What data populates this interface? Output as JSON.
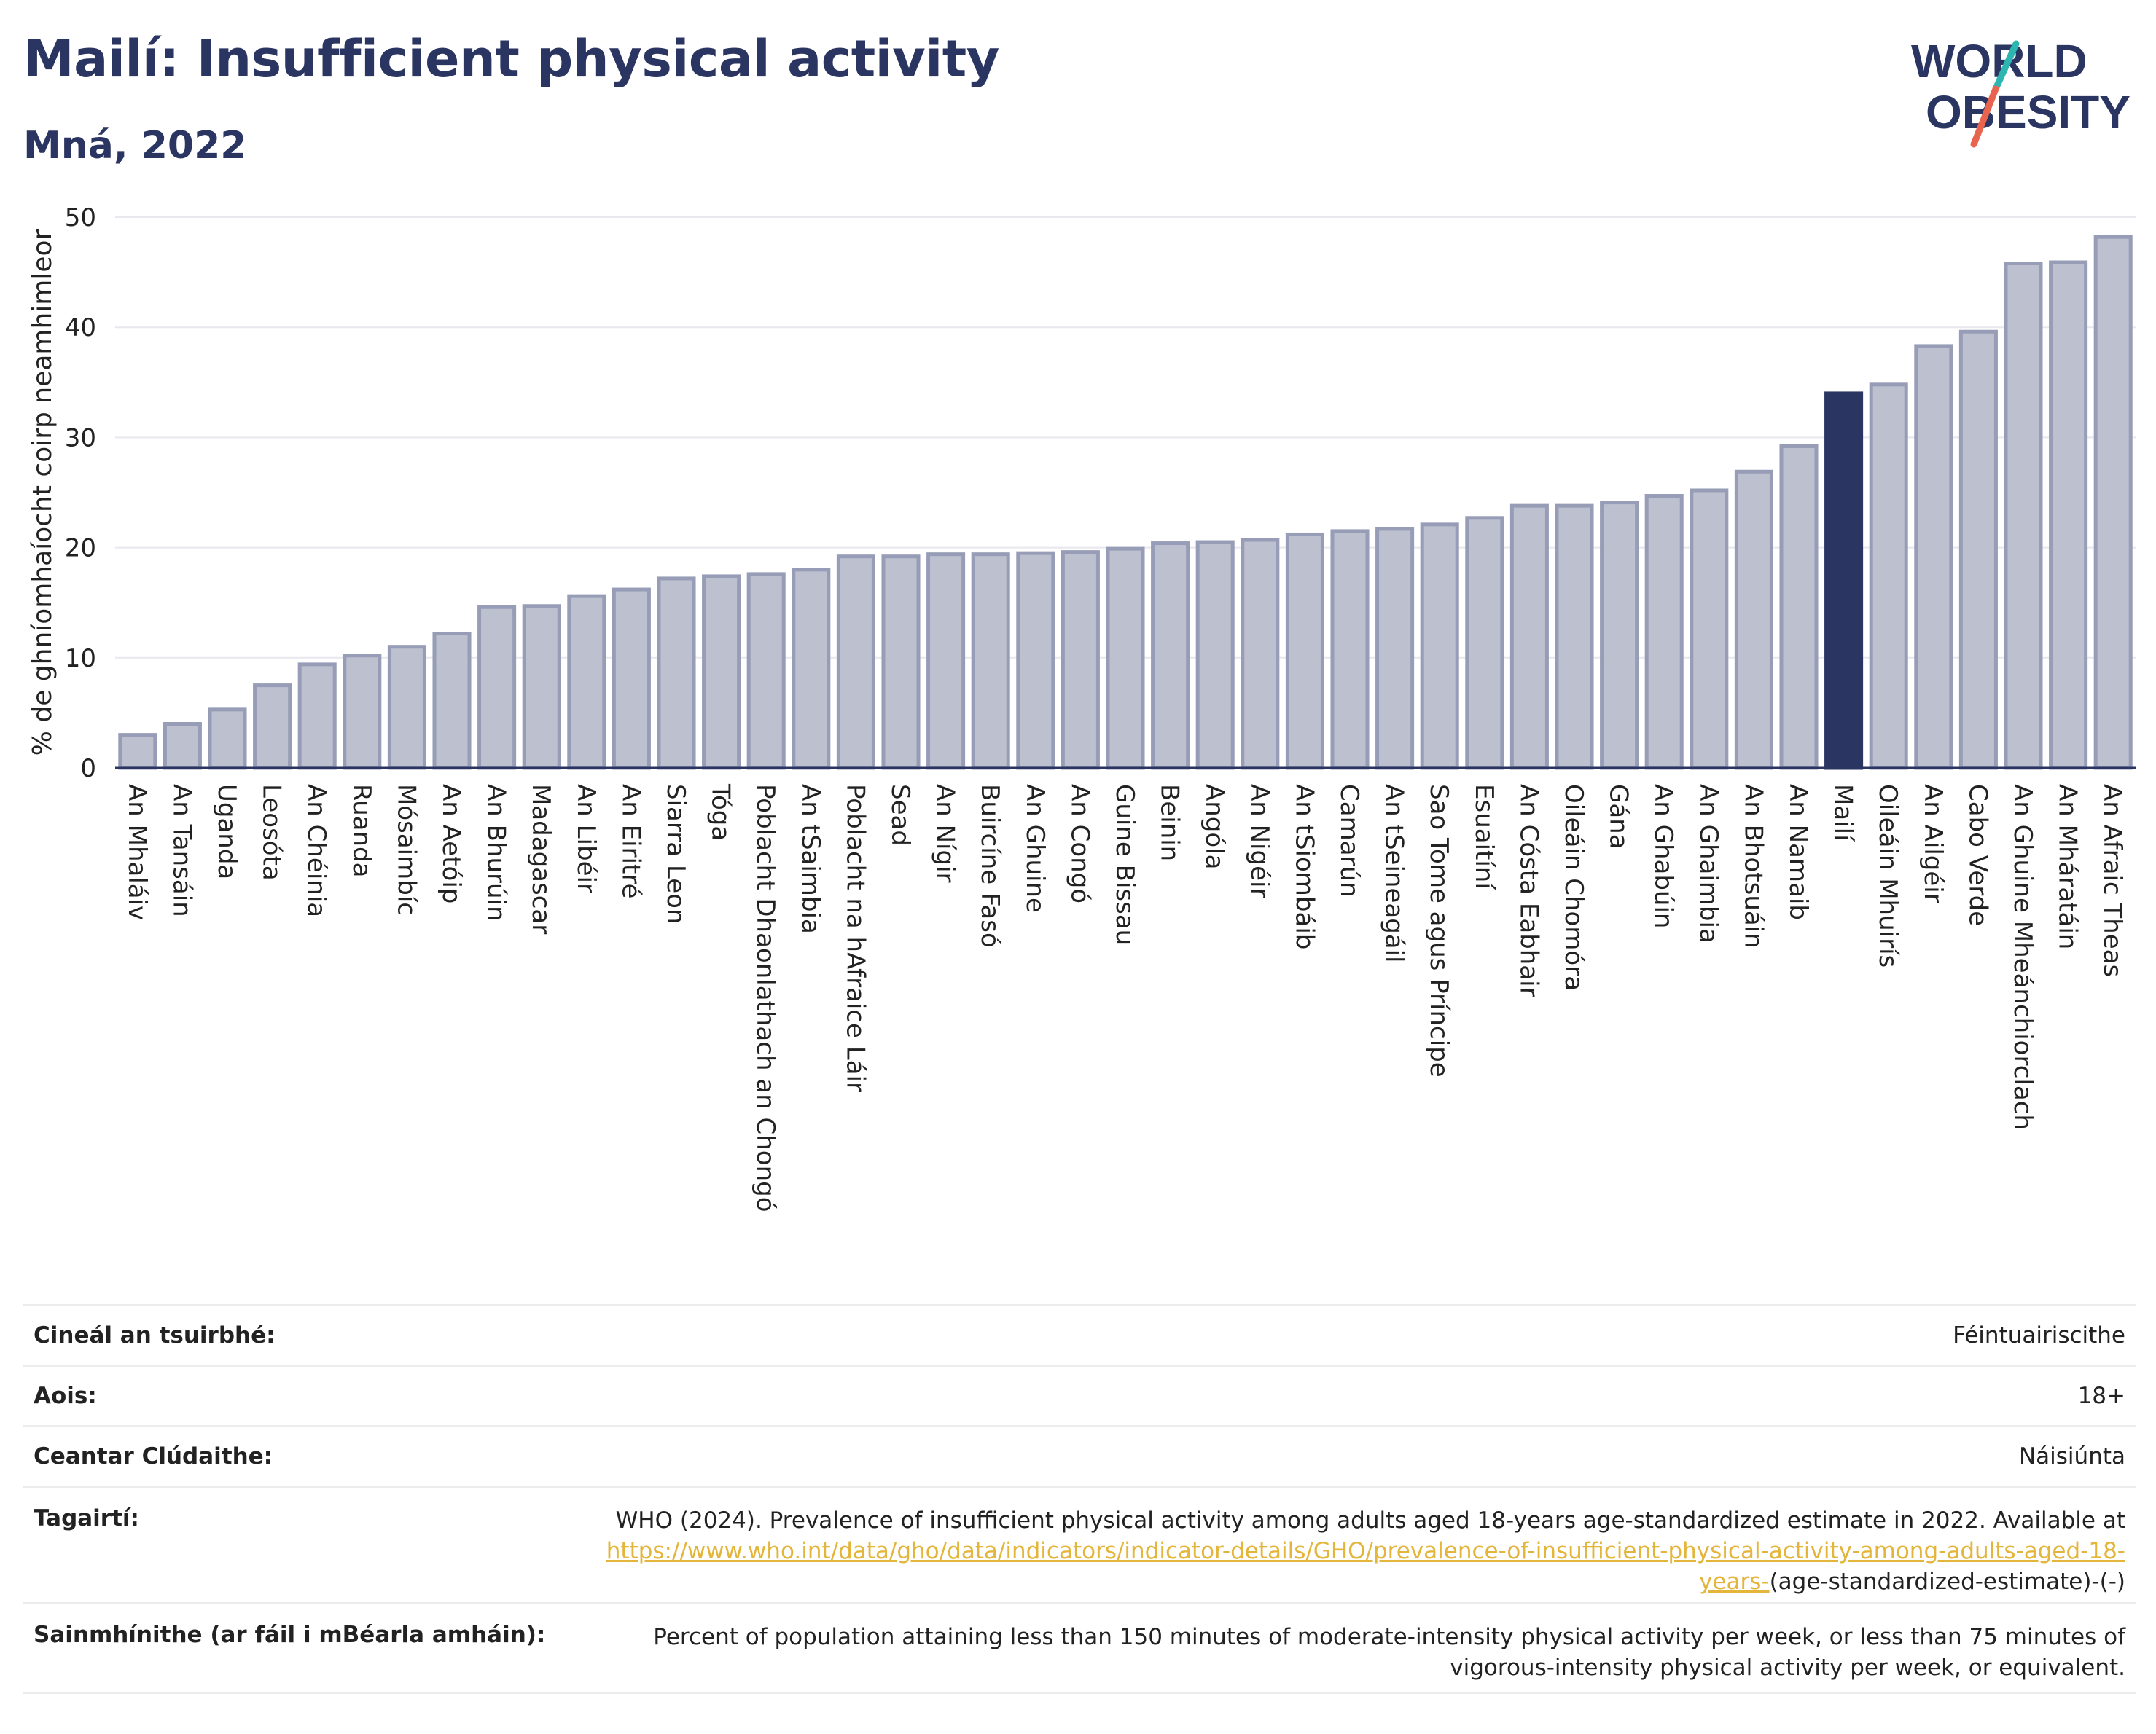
{
  "title": "Mailí: Insufficient physical activity",
  "subtitle": "Mná, 2022",
  "logo": {
    "line1": "WORLD",
    "line2": "OBESITY",
    "slash_colors": [
      "#2fb5b0",
      "#e8644f"
    ]
  },
  "colors": {
    "bar": "#bcc0cf",
    "bar_edge": "#979db6",
    "highlight": "#2b3562",
    "text_dark": "#2b3562",
    "link": "#e3b53a"
  },
  "chart_data": {
    "type": "bar",
    "ylabel": "% de ghníomhaíocht coirp neamhimleor",
    "xlabel": "",
    "ylim": [
      0,
      50
    ],
    "yticks": [
      0,
      10,
      20,
      30,
      40,
      50
    ],
    "grid": true,
    "highlight": "Mailí",
    "categories": [
      "An Mhaláiv",
      "An Tansáin",
      "Uganda",
      "Leosóta",
      "An Chéinia",
      "Ruanda",
      "Mósaimbíc",
      "An Aetóip",
      "An Bhurúin",
      "Madagascar",
      "An Libéir",
      "An Eiritré",
      "Siarra Leon",
      "Tóga",
      "Poblacht Dhaonlathach an Chongó",
      "An tSaimbia",
      "Poblacht na hAfraice Láir",
      "Sead",
      "An Nígir",
      "Buircíne Fasó",
      "An Ghuine",
      "An Congó",
      "Guine Bissau",
      "Beinin",
      "Angóla",
      "An Nigéir",
      "An tSiombáib",
      "Camarún",
      "An tSeineagáil",
      "Sao Tome agus Príncipe",
      "Esuaitíní",
      "An Cósta Eabhair",
      "Oileáin Chomóra",
      "Gána",
      "An Ghabúin",
      "An Ghaimbia",
      "An Bhotsuáin",
      "An Namaib",
      "Mailí",
      "Oileáin Mhuirís",
      "An Ailgéir",
      "Cabo Verde",
      "An Ghuine Mheánchiorclach",
      "An Mháratáin",
      "An Afraic Theas"
    ],
    "values": [
      3.0,
      4.0,
      5.3,
      7.5,
      9.4,
      10.2,
      11.0,
      12.2,
      14.6,
      14.7,
      15.6,
      16.2,
      17.2,
      17.4,
      17.6,
      18.0,
      19.2,
      19.2,
      19.4,
      19.4,
      19.5,
      19.6,
      19.9,
      20.4,
      20.5,
      20.7,
      21.2,
      21.5,
      21.7,
      22.1,
      22.7,
      23.8,
      23.8,
      24.1,
      24.7,
      25.2,
      26.9,
      29.2,
      34.0,
      34.8,
      38.3,
      39.6,
      45.8,
      45.9,
      48.2
    ]
  },
  "info": {
    "survey_type": {
      "label": "Cineál an tsuirbhé:",
      "value": "Féintuairiscithe"
    },
    "age": {
      "label": "Aois:",
      "value": "18+"
    },
    "coverage": {
      "label": "Ceantar Clúdaithe:",
      "value": "Náisiúnta"
    },
    "references": {
      "label": "Tagairtí:",
      "text": "WHO (2024). Prevalence of insufficient physical activity among adults aged 18-years age-standardized estimate in 2022. Available at",
      "link": "https://www.who.int/data/gho/data/indicators/indicator-details/GHO/prevalence-of-insufficient-physical-activity-among-adults-aged-18-years-",
      "suffix": "(age-standardized-estimate)-(-)"
    },
    "definitions": {
      "label": "Sainmhínithe (ar fáil i mBéarla amháin):",
      "value": "Percent of population attaining less than 150 minutes of moderate-intensity physical activity per week, or less than 75 minutes of vigorous-intensity physical activity per week, or equivalent."
    }
  }
}
